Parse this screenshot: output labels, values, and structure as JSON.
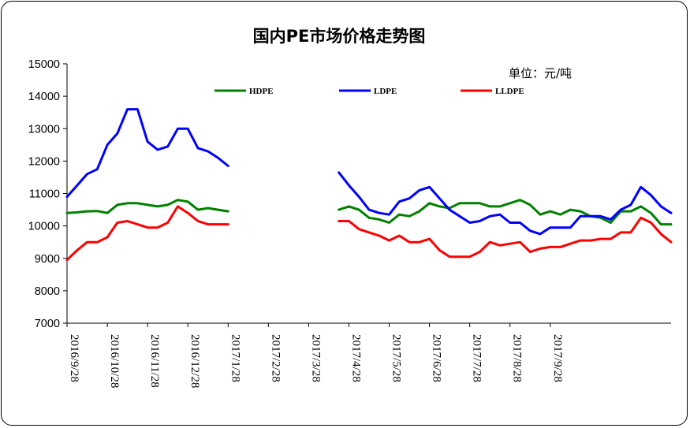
{
  "chart_data": {
    "type": "line",
    "title": "国内PE市场价格走势图",
    "unit_label": "单位：元/吨",
    "ylim": [
      7000,
      15000
    ],
    "ytick_step": 1000,
    "yticks": [
      "7000",
      "8000",
      "9000",
      "10000",
      "11000",
      "12000",
      "13000",
      "14000",
      "15000"
    ],
    "x_ticks": [
      "2016/9/28",
      "2016/10/28",
      "2016/11/28",
      "2016/12/28",
      "2017/1/28",
      "2017/2/28",
      "2017/3/28",
      "2017/4/28",
      "2017/5/28",
      "2017/6/28",
      "2017/7/28",
      "2017/8/28",
      "2017/9/28"
    ],
    "x_points_per_month": 4,
    "grid": false,
    "legend_position": "top",
    "series": [
      {
        "name": "HDPE",
        "color": "#008000",
        "values": [
          10400,
          10420,
          10450,
          10460,
          10400,
          10650,
          10700,
          10700,
          10650,
          10600,
          10650,
          10800,
          10750,
          10500,
          10550,
          10500,
          10450,
          null,
          null,
          null,
          null,
          null,
          null,
          null,
          null,
          null,
          null,
          10500,
          10600,
          10500,
          10250,
          10200,
          10100,
          10350,
          10300,
          10450,
          10700,
          10600,
          10550,
          10700,
          10700,
          10700,
          10600,
          10600,
          10700,
          10800,
          10650,
          10350,
          10450,
          10350,
          10500,
          10450,
          10300,
          10250,
          10100,
          10450,
          10450,
          10600,
          10400,
          10050,
          10050
        ]
      },
      {
        "name": "LDPE",
        "color": "#0000FF",
        "values": [
          10900,
          11250,
          11600,
          11750,
          12500,
          12850,
          13600,
          13600,
          12600,
          12350,
          12450,
          13000,
          13000,
          12400,
          12300,
          12100,
          11850,
          null,
          null,
          null,
          null,
          null,
          null,
          null,
          null,
          null,
          null,
          11650,
          11250,
          10900,
          10500,
          10400,
          10350,
          10750,
          10850,
          11100,
          11200,
          10850,
          10500,
          10300,
          10100,
          10150,
          10300,
          10350,
          10100,
          10100,
          9850,
          9750,
          9950,
          9950,
          9950,
          10300,
          10300,
          10300,
          10200,
          10500,
          10650,
          11200,
          10950,
          10600,
          10400
        ]
      },
      {
        "name": "LLDPE",
        "color": "#FF0000",
        "values": [
          8950,
          9250,
          9500,
          9500,
          9650,
          10100,
          10150,
          10050,
          9950,
          9950,
          10100,
          10600,
          10400,
          10150,
          10050,
          10050,
          10050,
          null,
          null,
          null,
          null,
          null,
          null,
          null,
          null,
          null,
          null,
          10150,
          10150,
          9900,
          9800,
          9700,
          9550,
          9700,
          9500,
          9500,
          9600,
          9250,
          9050,
          9050,
          9050,
          9200,
          9500,
          9400,
          9450,
          9500,
          9200,
          9300,
          9350,
          9350,
          9450,
          9550,
          9550,
          9600,
          9600,
          9800,
          9800,
          10250,
          10100,
          9750,
          9500
        ]
      }
    ]
  }
}
